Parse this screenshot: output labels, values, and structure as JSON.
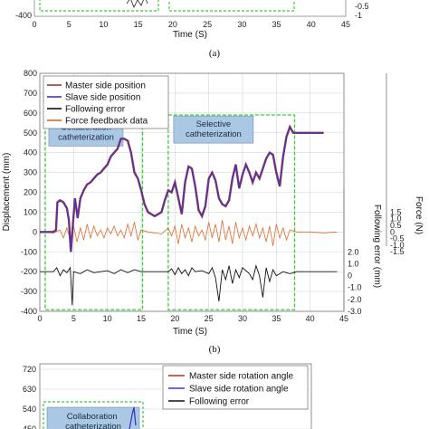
{
  "panel_a_label": "(a)",
  "panel_b_label": "(b)",
  "chart_data": [
    {
      "id": "top",
      "type": "line",
      "xlabel": "Time (S)",
      "x_ticks": [
        "0",
        "5",
        "10",
        "15",
        "20",
        "25",
        "30",
        "35",
        "40",
        "45"
      ],
      "xlim": [
        0,
        45
      ],
      "y_ticks_visible": [
        "-400"
      ],
      "right_ticks_visible": [
        "-0.5",
        "-1"
      ]
    },
    {
      "id": "middle",
      "type": "line",
      "xlabel": "Time (S)",
      "ylabel": "Displacement (mm)",
      "ylabel_right_inner": "Following error (mm)",
      "ylabel_right_outer": "Force (N)",
      "xlim": [
        0,
        45
      ],
      "ylim": [
        -400,
        800
      ],
      "x_ticks": [
        "0",
        "5",
        "10",
        "15",
        "20",
        "25",
        "30",
        "35",
        "40",
        "45"
      ],
      "y_ticks": [
        "-400",
        "-300",
        "-200",
        "-100",
        "0",
        "100",
        "200",
        "300",
        "400",
        "500",
        "600",
        "700",
        "800"
      ],
      "err_ticks": [
        "2.0",
        "1.0",
        "0",
        "-1.0",
        "-2.0",
        "-3.0"
      ],
      "force_ticks": [
        "1.5",
        "1.0",
        "0.5",
        "0",
        "-0.5",
        "-1.0",
        "-1.5"
      ],
      "legend": [
        {
          "name": "Master side position",
          "color": "#b03030"
        },
        {
          "name": "Slave side position",
          "color": "#3a3ac0"
        },
        {
          "name": "Following error",
          "color": "#111111"
        },
        {
          "name": "Force feedback data",
          "color": "#e06a2a"
        }
      ],
      "regions": [
        {
          "label": "Collaboration catheterization",
          "x": [
            0.8,
            15.2
          ]
        },
        {
          "label": "Selective catheterization",
          "x": [
            19.0,
            37.7
          ]
        }
      ],
      "position_series": [
        [
          0,
          0
        ],
        [
          1.2,
          0
        ],
        [
          2.0,
          0
        ],
        [
          2.4,
          10
        ],
        [
          2.6,
          150
        ],
        [
          3.0,
          160
        ],
        [
          3.5,
          150
        ],
        [
          4.0,
          120
        ],
        [
          4.3,
          60
        ],
        [
          4.6,
          -100
        ],
        [
          4.9,
          40
        ],
        [
          5.2,
          170
        ],
        [
          5.6,
          70
        ],
        [
          6.0,
          170
        ],
        [
          6.5,
          210
        ],
        [
          7.0,
          240
        ],
        [
          7.5,
          250
        ],
        [
          8.0,
          270
        ],
        [
          8.5,
          290
        ],
        [
          9.0,
          300
        ],
        [
          9.5,
          320
        ],
        [
          10.0,
          340
        ],
        [
          10.5,
          380
        ],
        [
          11.0,
          400
        ],
        [
          11.5,
          420
        ],
        [
          12.0,
          470
        ],
        [
          12.5,
          470
        ],
        [
          13.0,
          460
        ],
        [
          13.5,
          400
        ],
        [
          14.0,
          300
        ],
        [
          14.5,
          270
        ],
        [
          15.0,
          210
        ],
        [
          15.5,
          140
        ],
        [
          16.0,
          100
        ],
        [
          17.0,
          80
        ],
        [
          18.0,
          100
        ],
        [
          18.5,
          160
        ],
        [
          19.0,
          210
        ],
        [
          19.5,
          200
        ],
        [
          20.0,
          250
        ],
        [
          20.5,
          170
        ],
        [
          21.0,
          90
        ],
        [
          21.5,
          250
        ],
        [
          22.0,
          330
        ],
        [
          22.5,
          320
        ],
        [
          23.0,
          230
        ],
        [
          23.5,
          110
        ],
        [
          24.0,
          80
        ],
        [
          24.5,
          130
        ],
        [
          25.0,
          270
        ],
        [
          25.5,
          300
        ],
        [
          26.0,
          260
        ],
        [
          26.5,
          170
        ],
        [
          27.0,
          140
        ],
        [
          27.5,
          130
        ],
        [
          28.0,
          160
        ],
        [
          28.5,
          270
        ],
        [
          29.0,
          340
        ],
        [
          29.5,
          220
        ],
        [
          30.0,
          290
        ],
        [
          30.5,
          340
        ],
        [
          31.0,
          300
        ],
        [
          31.5,
          250
        ],
        [
          32.0,
          300
        ],
        [
          32.5,
          270
        ],
        [
          33.0,
          320
        ],
        [
          33.5,
          370
        ],
        [
          34.0,
          400
        ],
        [
          34.5,
          390
        ],
        [
          35.0,
          300
        ],
        [
          35.5,
          230
        ],
        [
          36.0,
          380
        ],
        [
          36.5,
          480
        ],
        [
          37.0,
          530
        ],
        [
          37.5,
          500
        ],
        [
          38.0,
          500
        ],
        [
          42.0,
          500
        ]
      ],
      "force_series": [
        [
          0,
          -5
        ],
        [
          1,
          0
        ],
        [
          2,
          -5
        ],
        [
          3,
          10
        ],
        [
          3.5,
          -30
        ],
        [
          4,
          20
        ],
        [
          4.5,
          -40
        ],
        [
          5,
          30
        ],
        [
          5.5,
          -50
        ],
        [
          6,
          20
        ],
        [
          6.5,
          -40
        ],
        [
          7,
          40
        ],
        [
          7.5,
          -30
        ],
        [
          8,
          30
        ],
        [
          8.5,
          -20
        ],
        [
          9,
          10
        ],
        [
          9.5,
          -30
        ],
        [
          10,
          20
        ],
        [
          10.5,
          -10
        ],
        [
          11,
          30
        ],
        [
          11.5,
          -20
        ],
        [
          12,
          10
        ],
        [
          12.5,
          -30
        ],
        [
          13,
          40
        ],
        [
          13.5,
          -20
        ],
        [
          14,
          50
        ],
        [
          14.5,
          -40
        ],
        [
          15,
          10
        ],
        [
          16,
          0
        ],
        [
          17,
          -5
        ],
        [
          18,
          -10
        ],
        [
          19,
          20
        ],
        [
          19.5,
          -20
        ],
        [
          20,
          30
        ],
        [
          20.5,
          -60
        ],
        [
          21,
          40
        ],
        [
          21.5,
          -30
        ],
        [
          22,
          20
        ],
        [
          22.5,
          -50
        ],
        [
          23,
          30
        ],
        [
          23.5,
          -20
        ],
        [
          24,
          10
        ],
        [
          24.5,
          -40
        ],
        [
          25,
          50
        ],
        [
          25.5,
          -30
        ],
        [
          26,
          40
        ],
        [
          26.5,
          -50
        ],
        [
          27,
          60
        ],
        [
          27.5,
          -40
        ],
        [
          28,
          30
        ],
        [
          28.5,
          -60
        ],
        [
          29,
          50
        ],
        [
          29.5,
          -30
        ],
        [
          30,
          20
        ],
        [
          30.5,
          -40
        ],
        [
          31,
          30
        ],
        [
          31.5,
          -20
        ],
        [
          32,
          40
        ],
        [
          32.5,
          -30
        ],
        [
          33,
          20
        ],
        [
          33.5,
          -50
        ],
        [
          34,
          30
        ],
        [
          34.5,
          -70
        ],
        [
          35,
          40
        ],
        [
          35.5,
          -30
        ],
        [
          36,
          20
        ],
        [
          36.5,
          -40
        ],
        [
          37,
          10
        ],
        [
          38,
          0
        ],
        [
          40,
          0
        ],
        [
          42,
          -5
        ],
        [
          44,
          0
        ]
      ],
      "error_series": [
        [
          0,
          -200
        ],
        [
          2,
          -200
        ],
        [
          2.5,
          -180
        ],
        [
          3,
          -220
        ],
        [
          3.5,
          -190
        ],
        [
          4,
          -205
        ],
        [
          4.5,
          -180
        ],
        [
          4.8,
          -370
        ],
        [
          5,
          -200
        ],
        [
          6,
          -210
        ],
        [
          7,
          -190
        ],
        [
          8,
          -205
        ],
        [
          9,
          -200
        ],
        [
          10,
          -195
        ],
        [
          11,
          -210
        ],
        [
          12,
          -190
        ],
        [
          13,
          -205
        ],
        [
          14,
          -190
        ],
        [
          15,
          -200
        ],
        [
          16,
          -200
        ],
        [
          19,
          -200
        ],
        [
          19.5,
          -185
        ],
        [
          20,
          -215
        ],
        [
          20.5,
          -180
        ],
        [
          21,
          -210
        ],
        [
          21.5,
          -190
        ],
        [
          22,
          -220
        ],
        [
          22.5,
          -180
        ],
        [
          23,
          -200
        ],
        [
          24,
          -195
        ],
        [
          25,
          -210
        ],
        [
          25.5,
          -180
        ],
        [
          26,
          -230
        ],
        [
          26.5,
          -350
        ],
        [
          27,
          -190
        ],
        [
          27.5,
          -240
        ],
        [
          28,
          -170
        ],
        [
          28.5,
          -260
        ],
        [
          29,
          -190
        ],
        [
          29.5,
          -230
        ],
        [
          30,
          -180
        ],
        [
          31,
          -210
        ],
        [
          31.5,
          -240
        ],
        [
          32,
          -170
        ],
        [
          32.5,
          -220
        ],
        [
          33,
          -330
        ],
        [
          33.5,
          -180
        ],
        [
          34,
          -250
        ],
        [
          34.5,
          -190
        ],
        [
          35,
          -220
        ],
        [
          36,
          -200
        ],
        [
          37,
          -210
        ],
        [
          38,
          -200
        ],
        [
          44,
          -200
        ]
      ]
    },
    {
      "id": "bottom",
      "type": "line",
      "y_ticks_visible": [
        "720",
        "630",
        "540",
        "450"
      ],
      "legend": [
        {
          "name": "Master side rotation angle",
          "color": "#b03030"
        },
        {
          "name": "Slave side rotation angle",
          "color": "#3a3ac0"
        },
        {
          "name": "Following error",
          "color": "#111111"
        }
      ],
      "regions": [
        {
          "label": "Collaboration catheterization",
          "x": [
            0.8,
            15.2
          ]
        }
      ]
    }
  ]
}
